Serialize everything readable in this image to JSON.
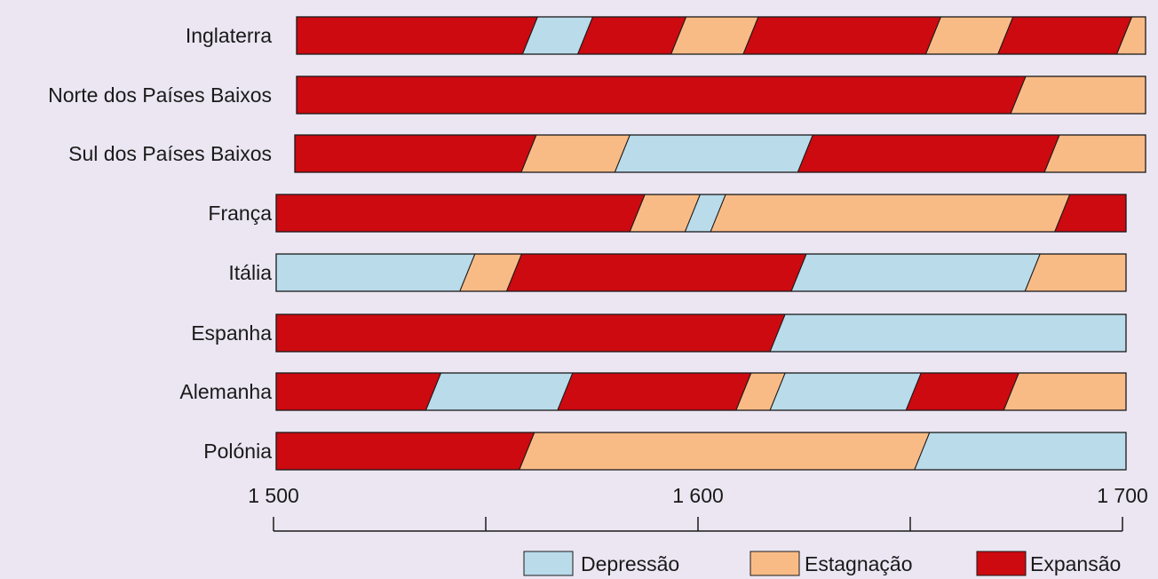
{
  "chart_data": {
    "type": "timeline-bar",
    "x_range": [
      1500,
      1700
    ],
    "x_ticks": [
      {
        "value": 1500,
        "label": "1 500"
      },
      {
        "value": 1550,
        "label": ""
      },
      {
        "value": 1600,
        "label": "1 600"
      },
      {
        "value": 1650,
        "label": ""
      },
      {
        "value": 1700,
        "label": "1 700"
      }
    ],
    "colors": {
      "Depressão": "#b9dbea",
      "Estagnação": "#f9bb86",
      "Expansão": "#cc0a10"
    },
    "legend": [
      "Depressão",
      "Estagnação",
      "Expansão"
    ],
    "legend_position": "bottom-right",
    "rows": [
      {
        "country": "Inglaterra",
        "segments": [
          {
            "state": "Expansão",
            "start": 1500,
            "end": 1555
          },
          {
            "state": "Depressão",
            "start": 1555,
            "end": 1568
          },
          {
            "state": "Expansão",
            "start": 1568,
            "end": 1590
          },
          {
            "state": "Estagnação",
            "start": 1590,
            "end": 1607
          },
          {
            "state": "Expansão",
            "start": 1607,
            "end": 1650
          },
          {
            "state": "Estagnação",
            "start": 1650,
            "end": 1667
          },
          {
            "state": "Expansão",
            "start": 1667,
            "end": 1695
          },
          {
            "state": "Estagnação",
            "start": 1695,
            "end": 1700
          }
        ]
      },
      {
        "country": "Norte dos Países Baixos",
        "segments": [
          {
            "state": "Expansão",
            "start": 1500,
            "end": 1670
          },
          {
            "state": "Estagnação",
            "start": 1670,
            "end": 1700
          }
        ]
      },
      {
        "country": "Sul dos Países Baixos",
        "segments": [
          {
            "state": "Expansão",
            "start": 1500,
            "end": 1555
          },
          {
            "state": "Estagnação",
            "start": 1555,
            "end": 1577
          },
          {
            "state": "Depressão",
            "start": 1577,
            "end": 1620
          },
          {
            "state": "Expansão",
            "start": 1620,
            "end": 1678
          },
          {
            "state": "Estagnação",
            "start": 1678,
            "end": 1700
          }
        ]
      },
      {
        "country": "França",
        "segments": [
          {
            "state": "Expansão",
            "start": 1500,
            "end": 1585
          },
          {
            "state": "Estagnação",
            "start": 1585,
            "end": 1598
          },
          {
            "state": "Depressão",
            "start": 1598,
            "end": 1604
          },
          {
            "state": "Estagnação",
            "start": 1604,
            "end": 1685
          },
          {
            "state": "Expansão",
            "start": 1685,
            "end": 1700
          }
        ]
      },
      {
        "country": "Itália",
        "segments": [
          {
            "state": "Depressão",
            "start": 1500,
            "end": 1545
          },
          {
            "state": "Estagnação",
            "start": 1545,
            "end": 1556
          },
          {
            "state": "Expansão",
            "start": 1556,
            "end": 1623
          },
          {
            "state": "Depressão",
            "start": 1623,
            "end": 1678
          },
          {
            "state": "Estagnação",
            "start": 1678,
            "end": 1700
          }
        ]
      },
      {
        "country": "Espanha",
        "segments": [
          {
            "state": "Expansão",
            "start": 1500,
            "end": 1618
          },
          {
            "state": "Depressão",
            "start": 1618,
            "end": 1700
          }
        ]
      },
      {
        "country": "Alemanha",
        "segments": [
          {
            "state": "Expansão",
            "start": 1500,
            "end": 1537
          },
          {
            "state": "Depressão",
            "start": 1537,
            "end": 1568
          },
          {
            "state": "Expansão",
            "start": 1568,
            "end": 1610
          },
          {
            "state": "Estagnação",
            "start": 1610,
            "end": 1618
          },
          {
            "state": "Depressão",
            "start": 1618,
            "end": 1650
          },
          {
            "state": "Expansão",
            "start": 1650,
            "end": 1673
          },
          {
            "state": "Estagnação",
            "start": 1673,
            "end": 1700
          }
        ]
      },
      {
        "country": "Polónia",
        "segments": [
          {
            "state": "Expansão",
            "start": 1500,
            "end": 1559
          },
          {
            "state": "Estagnação",
            "start": 1559,
            "end": 1652
          },
          {
            "state": "Depressão",
            "start": 1652,
            "end": 1700
          }
        ]
      }
    ]
  }
}
